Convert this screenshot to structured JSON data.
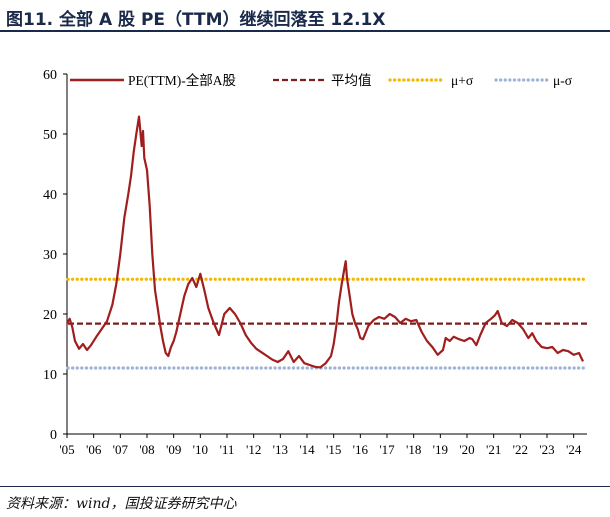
{
  "header": {
    "title": "图11. 全部 A 股 PE（TTM）继续回落至 12.1X"
  },
  "footer": {
    "source": "资料来源：wind，国投证券研究中心"
  },
  "chart_data": {
    "type": "line",
    "title": "图11. 全部 A 股 PE（TTM）继续回落至 12.1X",
    "xlabel": "",
    "ylabel": "",
    "ylim": [
      0,
      60
    ],
    "xlim": [
      2005.0,
      2024.5
    ],
    "yticks": [
      0,
      10,
      20,
      30,
      40,
      50,
      60
    ],
    "xticks": [
      "'05",
      "'06",
      "'07",
      "'08",
      "'09",
      "'10",
      "'11",
      "'12",
      "'13",
      "'14",
      "'15",
      "'16",
      "'17",
      "'18",
      "'19",
      "'20",
      "'21",
      "'22",
      "'23",
      "'24"
    ],
    "grid": false,
    "legend_position": "top",
    "colors": {
      "pe": "#a01e1e",
      "mean": "#7a1f1f",
      "upper": "#f2b800",
      "lower": "#9db2d6"
    },
    "series": [
      {
        "name": "PE(TTM)-全部A股",
        "style": "solid",
        "x": [
          2005.0,
          2005.1,
          2005.2,
          2005.3,
          2005.45,
          2005.6,
          2005.75,
          2005.9,
          2006.1,
          2006.3,
          2006.5,
          2006.7,
          2006.85,
          2007.0,
          2007.15,
          2007.3,
          2007.4,
          2007.5,
          2007.6,
          2007.7,
          2007.8,
          2007.85,
          2007.9,
          2008.0,
          2008.1,
          2008.2,
          2008.3,
          2008.4,
          2008.5,
          2008.6,
          2008.7,
          2008.8,
          2008.9,
          2009.0,
          2009.1,
          2009.25,
          2009.4,
          2009.55,
          2009.7,
          2009.85,
          2010.0,
          2010.15,
          2010.3,
          2010.5,
          2010.7,
          2010.9,
          2011.1,
          2011.3,
          2011.5,
          2011.7,
          2011.9,
          2012.1,
          2012.3,
          2012.5,
          2012.7,
          2012.9,
          2013.1,
          2013.3,
          2013.5,
          2013.7,
          2013.9,
          2014.1,
          2014.3,
          2014.5,
          2014.7,
          2014.9,
          2015.0,
          2015.1,
          2015.2,
          2015.3,
          2015.4,
          2015.45,
          2015.5,
          2015.6,
          2015.7,
          2015.8,
          2015.9,
          2016.0,
          2016.1,
          2016.3,
          2016.5,
          2016.7,
          2016.9,
          2017.1,
          2017.3,
          2017.5,
          2017.7,
          2017.9,
          2018.1,
          2018.3,
          2018.5,
          2018.7,
          2018.9,
          2019.1,
          2019.2,
          2019.35,
          2019.5,
          2019.7,
          2019.9,
          2020.1,
          2020.2,
          2020.35,
          2020.5,
          2020.7,
          2020.9,
          2021.05,
          2021.15,
          2021.3,
          2021.5,
          2021.7,
          2021.9,
          2022.1,
          2022.3,
          2022.45,
          2022.6,
          2022.8,
          2023.0,
          2023.2,
          2023.4,
          2023.6,
          2023.8,
          2024.0,
          2024.2,
          2024.35
        ],
        "values": [
          18.5,
          19.2,
          17.8,
          15.5,
          14.2,
          15.0,
          14.0,
          14.8,
          16.2,
          17.5,
          18.8,
          21.5,
          25.0,
          30.0,
          36.0,
          40.0,
          43.0,
          47.0,
          50.0,
          52.9,
          48.0,
          50.5,
          46.0,
          44.0,
          38.0,
          30.0,
          24.0,
          21.0,
          18.0,
          15.5,
          13.5,
          13.0,
          14.5,
          15.5,
          17.0,
          20.0,
          23.0,
          25.0,
          26.0,
          24.5,
          26.7,
          24.0,
          21.0,
          18.5,
          16.5,
          20.0,
          21.0,
          20.0,
          18.5,
          16.5,
          15.2,
          14.2,
          13.6,
          13.0,
          12.4,
          12.0,
          12.5,
          13.8,
          12.0,
          13.0,
          11.8,
          11.5,
          11.2,
          11.1,
          11.8,
          13.0,
          15.0,
          18.0,
          22.0,
          25.0,
          27.5,
          28.8,
          26.0,
          23.0,
          20.0,
          18.5,
          17.5,
          16.0,
          15.8,
          18.0,
          19.0,
          19.5,
          19.2,
          20.0,
          19.5,
          18.5,
          19.2,
          18.8,
          19.0,
          17.0,
          15.5,
          14.5,
          13.2,
          14.0,
          16.0,
          15.5,
          16.2,
          15.8,
          15.5,
          16.0,
          15.8,
          14.8,
          16.5,
          18.5,
          19.2,
          19.8,
          20.5,
          18.5,
          18.0,
          19.0,
          18.5,
          17.5,
          16.0,
          16.8,
          15.5,
          14.5,
          14.3,
          14.5,
          13.5,
          14.0,
          13.8,
          13.2,
          13.5,
          12.1
        ]
      },
      {
        "name": "平均值",
        "style": "dashed",
        "value": 18.4
      },
      {
        "name": "μ+σ",
        "style": "dotted",
        "value": 25.8
      },
      {
        "name": "μ-σ",
        "style": "dotted",
        "value": 11.0
      }
    ]
  }
}
